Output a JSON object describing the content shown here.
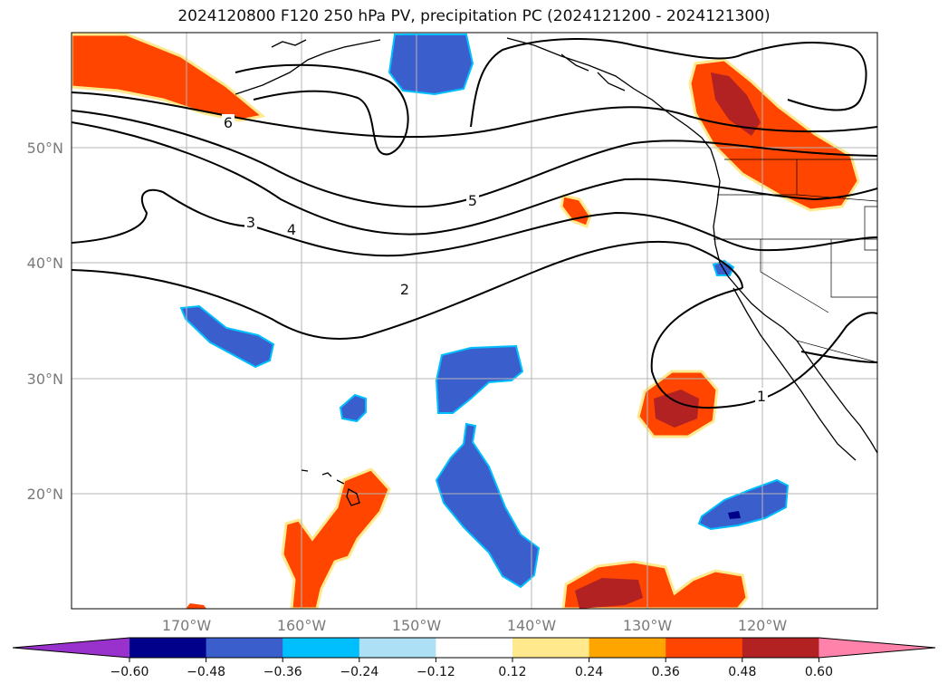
{
  "title": "2024120800 F120 250 hPa PV, precipitation PC (2024121200 - 2024121300)",
  "map": {
    "lat_labels": [
      "50°N",
      "40°N",
      "30°N",
      "20°N"
    ],
    "lon_labels": [
      "170°W",
      "160°W",
      "150°W",
      "140°W",
      "130°W",
      "120°W"
    ],
    "contour_labels": [
      "6",
      "5",
      "4",
      "3",
      "2",
      "1"
    ],
    "features": [
      "coastlines",
      "state-borders",
      "gridlines"
    ]
  },
  "colorbar": {
    "ticks": [
      "−0.60",
      "−0.48",
      "−0.36",
      "−0.24",
      "−0.12",
      "0.12",
      "0.24",
      "0.36",
      "0.48",
      "0.60"
    ],
    "colors": [
      "#9932CC",
      "#00008B",
      "#3A5FCD",
      "#00BFFF",
      "#ADE0F5",
      "#FFFFFF",
      "#FFE98C",
      "#FFA500",
      "#FF4500",
      "#B22222",
      "#FF82AB"
    ]
  }
}
